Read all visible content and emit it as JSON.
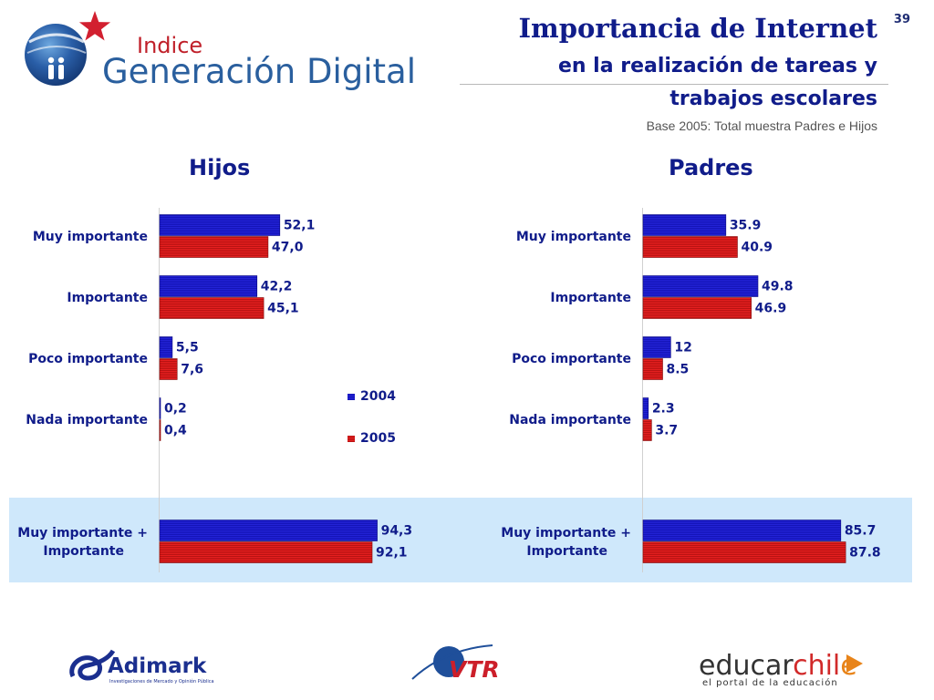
{
  "page_number": "39",
  "header": {
    "logo_small": "Indice",
    "logo_main": "Generación Digital",
    "title_line1": "Importancia de Internet",
    "title_line2": "en la realización de tareas y",
    "title_line3": "trabajos escolares",
    "base_note": "Base 2005: Total muestra Padres e Hijos"
  },
  "colors": {
    "series_2004": "#2323d6",
    "series_2005": "#e62020",
    "highlight_band": "#cfe8fb",
    "title": "#101c8a"
  },
  "chart_data": [
    {
      "type": "bar",
      "orientation": "horizontal",
      "title": "Hijos",
      "categories": [
        "Muy importante",
        "Importante",
        "Poco importante",
        "Nada importante",
        "Muy importante + Importante"
      ],
      "series": [
        {
          "name": "2004",
          "values": [
            52.1,
            42.2,
            5.5,
            0.2,
            94.3
          ],
          "labels": [
            "52,1",
            "42,2",
            "5,5",
            "0,2",
            "94,3"
          ]
        },
        {
          "name": "2005",
          "values": [
            47.0,
            45.1,
            7.6,
            0.4,
            92.1
          ],
          "labels": [
            "47,0",
            "45,1",
            "7,6",
            "0,4",
            "92,1"
          ]
        }
      ],
      "xlim": [
        0,
        100
      ],
      "legend": "center-right",
      "legend_entries": [
        "2004",
        "2005"
      ]
    },
    {
      "type": "bar",
      "orientation": "horizontal",
      "title": "Padres",
      "categories": [
        "Muy importante",
        "Importante",
        "Poco importante",
        "Nada importante",
        "Muy importante + Importante"
      ],
      "series": [
        {
          "name": "2004",
          "values": [
            35.9,
            49.8,
            12,
            2.3,
            85.7
          ],
          "labels": [
            "35.9",
            "49.8",
            "12",
            "2.3",
            "85.7"
          ]
        },
        {
          "name": "2005",
          "values": [
            40.9,
            46.9,
            8.5,
            3.7,
            87.8
          ],
          "labels": [
            "40.9",
            "46.9",
            "8.5",
            "3.7",
            "87.8"
          ]
        }
      ],
      "xlim": [
        0,
        100
      ]
    }
  ],
  "footer": {
    "adimark_name": "Adimark",
    "adimark_tagline": "Investigaciones de Mercado y Opinión Pública",
    "vtr_name": "VTR",
    "educar_part1": "educar",
    "educar_part2": "chil",
    "educar_part3": "e",
    "educar_tagline": "el portal de la educación"
  }
}
